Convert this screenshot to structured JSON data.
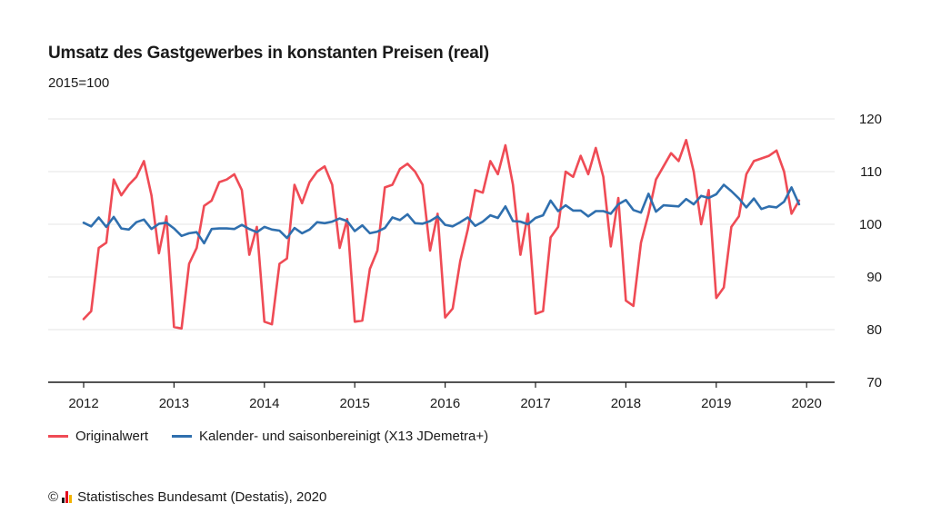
{
  "title": "Umsatz des Gastgewerbes in konstanten Preisen (real)",
  "subtitle": "2015=100",
  "source": {
    "copyright_symbol": "©",
    "text": "Statistisches Bundesamt (Destatis), 2020"
  },
  "colors": {
    "original": "#ef4b55",
    "adjusted": "#2f6fae",
    "grid": "#e6e6e6",
    "axis": "#1a1a1a",
    "logo": [
      "#1a1a1a",
      "#e2001a",
      "#f2b300"
    ]
  },
  "chart_data": {
    "type": "line",
    "ylim": [
      70,
      120
    ],
    "yticks": [
      70,
      80,
      90,
      100,
      110,
      120
    ],
    "ytick_labels": [
      "70",
      "80",
      "90",
      "100",
      "110",
      "120"
    ],
    "x_tick_labels": [
      "2012",
      "2013",
      "2014",
      "2015",
      "2016",
      "2017",
      "2018",
      "2019",
      "2020"
    ],
    "x_start_year": 2012,
    "grid": true,
    "legend_position": "bottom-left",
    "series": [
      {
        "name": "Originalwert",
        "color": "#ef4b55",
        "values": [
          82.0,
          83.5,
          95.5,
          96.5,
          108.5,
          105.5,
          107.5,
          109.0,
          112.0,
          105.5,
          94.5,
          101.5,
          80.5,
          80.2,
          92.5,
          95.5,
          103.5,
          104.5,
          108.0,
          108.5,
          109.5,
          106.5,
          94.2,
          99.5,
          81.5,
          81.0,
          92.5,
          93.5,
          107.5,
          104.0,
          108.0,
          110.0,
          111.0,
          107.5,
          95.5,
          101.0,
          81.5,
          81.7,
          91.5,
          95.0,
          107.0,
          107.5,
          110.5,
          111.5,
          110.0,
          107.5,
          95.0,
          102.0,
          82.3,
          84.0,
          93.0,
          99.0,
          106.5,
          106.0,
          112.0,
          109.5,
          115.0,
          107.5,
          94.2,
          102.0,
          83.0,
          83.5,
          97.5,
          99.5,
          110.0,
          109.0,
          113.0,
          109.5,
          114.5,
          109.0,
          95.8,
          105.0,
          85.5,
          84.5,
          96.5,
          102.0,
          108.5,
          111.0,
          113.5,
          112.0,
          116.0,
          110.0,
          100.0,
          106.5,
          86.0,
          88.0,
          99.5,
          101.5,
          109.5,
          112.0,
          112.5,
          113.0,
          114.0,
          110.0,
          102.0,
          104.5
        ]
      },
      {
        "name": "Kalender- und saisonbereinigt (X13 JDemetra+)",
        "color": "#2f6fae",
        "values": [
          100.3,
          99.6,
          101.3,
          99.5,
          101.4,
          99.2,
          99.0,
          100.4,
          100.9,
          99.1,
          100.1,
          100.3,
          99.2,
          97.8,
          98.3,
          98.5,
          96.4,
          99.1,
          99.2,
          99.2,
          99.1,
          99.9,
          99.1,
          98.5,
          99.5,
          99.0,
          98.8,
          97.4,
          99.3,
          98.3,
          99.0,
          100.4,
          100.2,
          100.5,
          101.1,
          100.6,
          98.7,
          99.8,
          98.3,
          98.6,
          99.3,
          101.3,
          100.8,
          101.9,
          100.2,
          100.1,
          100.6,
          101.5,
          99.9,
          99.6,
          100.4,
          101.3,
          99.7,
          100.5,
          101.7,
          101.2,
          103.4,
          100.6,
          100.5,
          100.0,
          101.2,
          101.7,
          104.5,
          102.5,
          103.6,
          102.6,
          102.6,
          101.5,
          102.5,
          102.5,
          102.0,
          103.8,
          104.6,
          102.7,
          102.2,
          105.8,
          102.4,
          103.6,
          103.5,
          103.4,
          104.8,
          103.8,
          105.4,
          105.0,
          105.7,
          107.5,
          106.3,
          104.9,
          103.2,
          104.9,
          102.9,
          103.4,
          103.2,
          104.3,
          107.0,
          103.8
        ]
      }
    ]
  }
}
